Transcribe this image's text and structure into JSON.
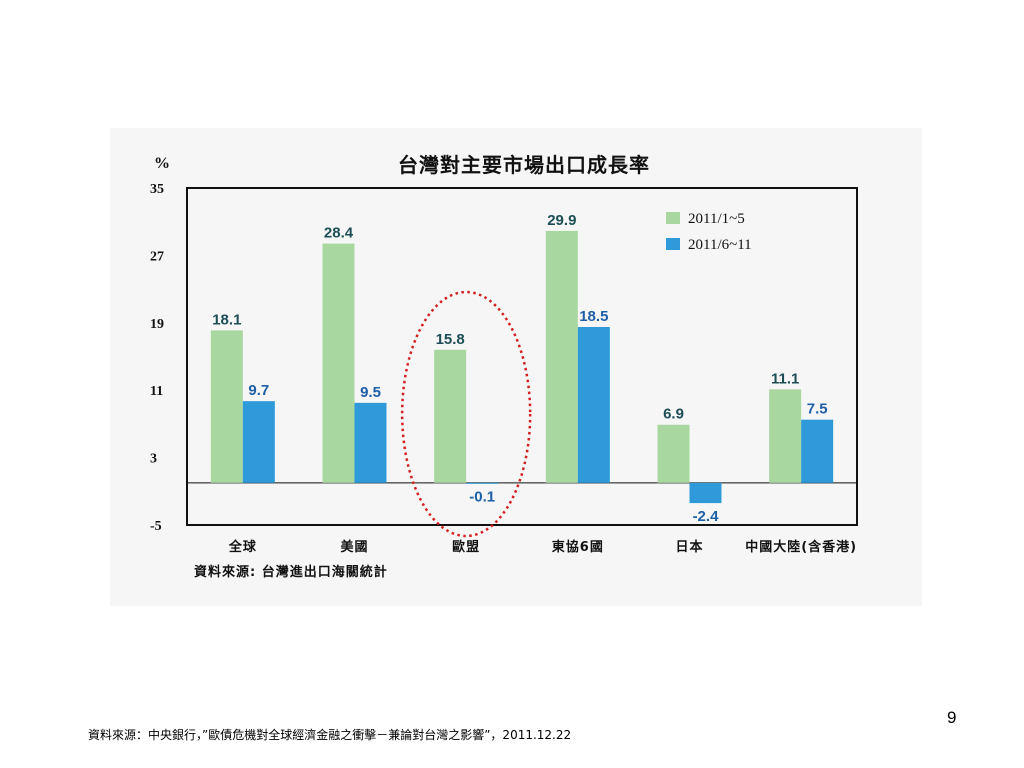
{
  "chart_data": {
    "type": "bar",
    "title": "台灣對主要市場出口成長率",
    "ylabel": "%",
    "ylim": [
      -5,
      35
    ],
    "yticks": [
      -5,
      3,
      11,
      19,
      27,
      35
    ],
    "categories": [
      "全球",
      "美國",
      "歐盟",
      "東協6國",
      "日本",
      "中國大陸(含香港)"
    ],
    "series": [
      {
        "name": "2011/1~5",
        "color": "#a8d8a0",
        "label_color": "#1d4e57",
        "values": [
          18.1,
          28.4,
          15.8,
          29.9,
          6.9,
          11.1
        ]
      },
      {
        "name": "2011/6~11",
        "color": "#2e9ad9",
        "label_color": "#1f5fa8",
        "values": [
          9.7,
          9.5,
          -0.1,
          18.5,
          -2.4,
          7.5
        ]
      }
    ],
    "grid": false,
    "legend_position": "top-right",
    "source_note": "資料來源: 台灣進出口海關統計",
    "highlight": {
      "category": "歐盟",
      "shape": "ellipse",
      "color": "#d42020"
    }
  },
  "slide": {
    "page_number": "9",
    "footer": "資料來源：中央銀行，”歐債危機對全球經濟金融之衝擊－兼論對台灣之影響”，2011.12.22"
  }
}
